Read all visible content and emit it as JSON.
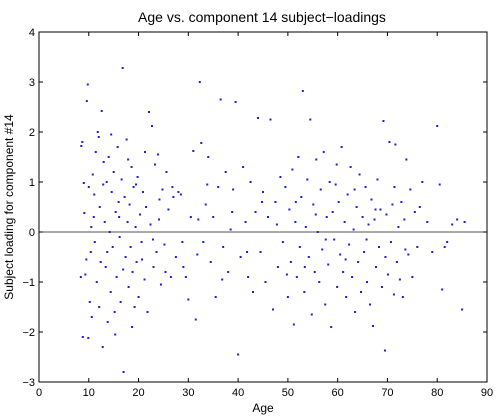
{
  "chart_data": {
    "type": "scatter",
    "title": "Age vs. component 14 subject−loadings",
    "xlabel": "Age",
    "ylabel": "Subject loading for component #14",
    "xlim": [
      0,
      90
    ],
    "ylim": [
      -3,
      4
    ],
    "xticks": [
      "0",
      "10",
      "20",
      "30",
      "40",
      "50",
      "60",
      "70",
      "80",
      "90"
    ],
    "yticks": [
      "−3",
      "−2",
      "−1",
      "0",
      "1",
      "2",
      "3",
      "4"
    ],
    "grid": false,
    "legend": "none",
    "reference_line_y": 0,
    "colors": {
      "points": "#1f1fd8",
      "axes": "#000000",
      "reference_line": "#555555"
    },
    "points": [
      [
        8.5,
        1.72
      ],
      [
        8.7,
        1.8
      ],
      [
        9.0,
        0.98
      ],
      [
        9.1,
        0.38
      ],
      [
        9.3,
        -0.85
      ],
      [
        9.5,
        -0.55
      ],
      [
        9.6,
        2.62
      ],
      [
        9.8,
        2.95
      ],
      [
        10.0,
        0.9
      ],
      [
        10.2,
        -1.4
      ],
      [
        8.4,
        -0.9
      ],
      [
        8.8,
        -2.1
      ],
      [
        9.9,
        -2.12
      ],
      [
        10.4,
        -0.4
      ],
      [
        10.5,
        0.1
      ],
      [
        10.8,
        1.15
      ],
      [
        11.0,
        0.3
      ],
      [
        11.2,
        -0.2
      ],
      [
        11.4,
        1.6
      ],
      [
        11.6,
        -1.0
      ],
      [
        11.8,
        2.0
      ],
      [
        12.0,
        1.9
      ],
      [
        12.2,
        0.5
      ],
      [
        12.4,
        -0.6
      ],
      [
        12.6,
        2.42
      ],
      [
        12.8,
        -2.3
      ],
      [
        13.0,
        1.4
      ],
      [
        13.2,
        0.2
      ],
      [
        13.4,
        -0.7
      ],
      [
        13.6,
        1.0
      ],
      [
        13.8,
        -1.8
      ],
      [
        14.0,
        1.5
      ],
      [
        14.2,
        0.0
      ],
      [
        14.4,
        -1.2
      ],
      [
        14.6,
        0.8
      ],
      [
        14.8,
        -0.3
      ],
      [
        15.0,
        1.2
      ],
      [
        15.2,
        -1.6
      ],
      [
        15.4,
        0.4
      ],
      [
        15.6,
        -0.9
      ],
      [
        15.8,
        1.7
      ],
      [
        16.0,
        0.6
      ],
      [
        16.2,
        -0.1
      ],
      [
        16.4,
        -1.4
      ],
      [
        16.6,
        1.05
      ],
      [
        16.8,
        3.28
      ],
      [
        17.0,
        -2.8
      ],
      [
        17.2,
        0.7
      ],
      [
        17.4,
        -0.5
      ],
      [
        17.6,
        1.85
      ],
      [
        17.8,
        0.2
      ],
      [
        18.0,
        -1.1
      ],
      [
        18.2,
        0.55
      ],
      [
        18.4,
        -0.3
      ],
      [
        18.6,
        1.3
      ],
      [
        18.8,
        -0.8
      ],
      [
        19.0,
        0.9
      ],
      [
        19.2,
        -1.5
      ],
      [
        19.4,
        0.1
      ],
      [
        19.6,
        -0.6
      ],
      [
        19.8,
        1.1
      ],
      [
        20.0,
        -1.3
      ],
      [
        20.3,
        0.35
      ],
      [
        20.6,
        -0.2
      ],
      [
        20.9,
        0.8
      ],
      [
        21.2,
        -0.95
      ],
      [
        21.5,
        0.5
      ],
      [
        21.8,
        -1.6
      ],
      [
        22.1,
        2.4
      ],
      [
        22.4,
        0.15
      ],
      [
        22.7,
        2.12
      ],
      [
        23.0,
        -0.7
      ],
      [
        23.3,
        1.35
      ],
      [
        23.6,
        -0.4
      ],
      [
        23.9,
        1.55
      ],
      [
        24.2,
        0.65
      ],
      [
        24.5,
        -1.05
      ],
      [
        24.8,
        0.85
      ],
      [
        25.2,
        -0.25
      ],
      [
        25.6,
        1.2
      ],
      [
        26.0,
        0.45
      ],
      [
        26.5,
        -0.9
      ],
      [
        27.0,
        0.7
      ],
      [
        27.5,
        -0.5
      ],
      [
        28.0,
        0.8
      ],
      [
        28.5,
        0.75
      ],
      [
        29.0,
        -0.7
      ],
      [
        29.5,
        -0.9
      ],
      [
        30.0,
        -1.35
      ],
      [
        30.5,
        0.3
      ],
      [
        31.0,
        1.62
      ],
      [
        31.5,
        -1.75
      ],
      [
        32.0,
        0.25
      ],
      [
        32.3,
        3.0
      ],
      [
        32.6,
        1.78
      ],
      [
        33.0,
        -0.2
      ],
      [
        33.5,
        0.55
      ],
      [
        34.0,
        1.5
      ],
      [
        34.5,
        -0.6
      ],
      [
        35.0,
        0.3
      ],
      [
        35.5,
        -1.3
      ],
      [
        36.0,
        0.9
      ],
      [
        36.5,
        2.65
      ],
      [
        37.0,
        -0.3
      ],
      [
        37.5,
        1.2
      ],
      [
        38.0,
        -0.8
      ],
      [
        38.5,
        0.05
      ],
      [
        39.0,
        0.85
      ],
      [
        39.5,
        2.6
      ],
      [
        40.0,
        -2.45
      ],
      [
        40.5,
        -0.5
      ],
      [
        41.0,
        1.3
      ],
      [
        41.5,
        0.2
      ],
      [
        42.0,
        -0.9
      ],
      [
        42.5,
        1.0
      ],
      [
        43.0,
        -1.2
      ],
      [
        43.5,
        0.4
      ],
      [
        44.0,
        2.28
      ],
      [
        44.5,
        -0.4
      ],
      [
        45.0,
        0.8
      ],
      [
        45.5,
        -1.0
      ],
      [
        46.0,
        0.3
      ],
      [
        46.5,
        2.25
      ],
      [
        47.0,
        -1.55
      ],
      [
        47.5,
        0.6
      ],
      [
        48.0,
        -0.7
      ],
      [
        48.5,
        1.1
      ],
      [
        49.0,
        -0.2
      ],
      [
        49.5,
        0.9
      ],
      [
        50.0,
        -1.3
      ],
      [
        50.3,
        0.45
      ],
      [
        50.6,
        -0.6
      ],
      [
        50.9,
        1.25
      ],
      [
        51.2,
        -1.85
      ],
      [
        51.5,
        0.2
      ],
      [
        51.8,
        -0.9
      ],
      [
        52.1,
        1.5
      ],
      [
        52.4,
        -0.3
      ],
      [
        52.7,
        0.7
      ],
      [
        53.0,
        2.82
      ],
      [
        53.3,
        -1.2
      ],
      [
        53.6,
        0.1
      ],
      [
        53.9,
        1.05
      ],
      [
        54.2,
        -0.5
      ],
      [
        54.5,
        2.25
      ],
      [
        54.8,
        -1.65
      ],
      [
        55.1,
        0.55
      ],
      [
        55.4,
        -0.8
      ],
      [
        55.7,
        1.45
      ],
      [
        56.0,
        0.0
      ],
      [
        56.3,
        -1.0
      ],
      [
        56.6,
        0.85
      ],
      [
        56.9,
        -0.35
      ],
      [
        57.2,
        1.6
      ],
      [
        57.5,
        -1.45
      ],
      [
        57.8,
        0.3
      ],
      [
        58.1,
        -0.65
      ],
      [
        58.4,
        1.0
      ],
      [
        58.7,
        -1.9
      ],
      [
        59.0,
        0.4
      ],
      [
        59.3,
        -0.15
      ],
      [
        59.6,
        0.95
      ],
      [
        59.9,
        -1.1
      ],
      [
        60.2,
        0.6
      ],
      [
        60.5,
        -0.45
      ],
      [
        60.8,
        1.7
      ],
      [
        61.1,
        -0.8
      ],
      [
        61.4,
        0.2
      ],
      [
        61.7,
        -1.3
      ],
      [
        62.0,
        0.75
      ],
      [
        62.3,
        -0.25
      ],
      [
        62.6,
        1.3
      ],
      [
        62.9,
        -0.9
      ],
      [
        63.2,
        0.05
      ],
      [
        63.5,
        -1.6
      ],
      [
        63.8,
        0.5
      ],
      [
        64.1,
        -0.6
      ],
      [
        64.4,
        1.15
      ],
      [
        64.7,
        -1.2
      ],
      [
        65.0,
        0.3
      ],
      [
        65.3,
        -0.4
      ],
      [
        65.6,
        0.9
      ],
      [
        65.9,
        -1.0
      ],
      [
        66.2,
        0.15
      ],
      [
        66.5,
        -1.45
      ],
      [
        66.8,
        0.65
      ],
      [
        67.1,
        -1.88
      ],
      [
        67.4,
        0.25
      ],
      [
        67.7,
        -0.7
      ],
      [
        68.0,
        1.05
      ],
      [
        68.3,
        -0.3
      ],
      [
        68.6,
        0.45
      ],
      [
        68.9,
        -1.1
      ],
      [
        69.2,
        2.22
      ],
      [
        69.5,
        -2.37
      ],
      [
        69.8,
        0.35
      ],
      [
        70.1,
        -0.85
      ],
      [
        70.4,
        1.8
      ],
      [
        70.7,
        -0.2
      ],
      [
        71.0,
        0.55
      ],
      [
        71.3,
        -1.25
      ],
      [
        71.6,
        1.75
      ],
      [
        71.9,
        -0.6
      ],
      [
        72.2,
        0.1
      ],
      [
        72.5,
        -0.95
      ],
      [
        72.8,
        0.6
      ],
      [
        73.1,
        -1.3
      ],
      [
        73.4,
        0.25
      ],
      [
        73.8,
        1.45
      ],
      [
        74.2,
        -0.45
      ],
      [
        74.6,
        0.85
      ],
      [
        75.0,
        -0.9
      ],
      [
        75.5,
        0.4
      ],
      [
        76.0,
        -0.3
      ],
      [
        77.0,
        1.0
      ],
      [
        78.0,
        0.2
      ],
      [
        79.0,
        -0.4
      ],
      [
        80.0,
        2.12
      ],
      [
        80.5,
        0.95
      ],
      [
        81.0,
        -1.15
      ],
      [
        81.5,
        -0.3
      ],
      [
        82.0,
        -0.2
      ],
      [
        83.0,
        0.15
      ],
      [
        84.0,
        0.25
      ],
      [
        85.0,
        -1.55
      ],
      [
        85.5,
        0.2
      ],
      [
        10.6,
        -1.7
      ],
      [
        11.1,
        0.75
      ],
      [
        12.1,
        -1.5
      ],
      [
        12.9,
        0.95
      ],
      [
        13.7,
        -0.4
      ],
      [
        14.5,
        1.95
      ],
      [
        15.3,
        -2.05
      ],
      [
        16.1,
        0.3
      ],
      [
        16.9,
        -0.75
      ],
      [
        17.9,
        1.45
      ],
      [
        18.7,
        -1.9
      ],
      [
        19.5,
        0.95
      ],
      [
        20.7,
        -0.55
      ],
      [
        21.3,
        1.6
      ],
      [
        22.9,
        -0.15
      ],
      [
        24.1,
        0.25
      ],
      [
        25.4,
        -0.8
      ],
      [
        26.8,
        0.9
      ],
      [
        28.8,
        -0.2
      ],
      [
        31.8,
        -0.45
      ],
      [
        33.8,
        0.95
      ],
      [
        36.8,
        -0.95
      ],
      [
        38.8,
        0.4
      ],
      [
        41.8,
        -0.4
      ],
      [
        44.8,
        0.6
      ],
      [
        47.8,
        0.15
      ],
      [
        49.8,
        -0.85
      ],
      [
        51.6,
        0.6
      ],
      [
        53.4,
        -0.7
      ],
      [
        55.6,
        0.35
      ],
      [
        57.6,
        -0.15
      ],
      [
        59.8,
        1.35
      ],
      [
        61.6,
        -0.55
      ],
      [
        63.4,
        0.85
      ],
      [
        65.8,
        -0.15
      ],
      [
        67.6,
        0.45
      ],
      [
        69.6,
        -0.5
      ],
      [
        71.4,
        0.9
      ],
      [
        73.6,
        -0.35
      ],
      [
        76.5,
        0.5
      ]
    ]
  }
}
